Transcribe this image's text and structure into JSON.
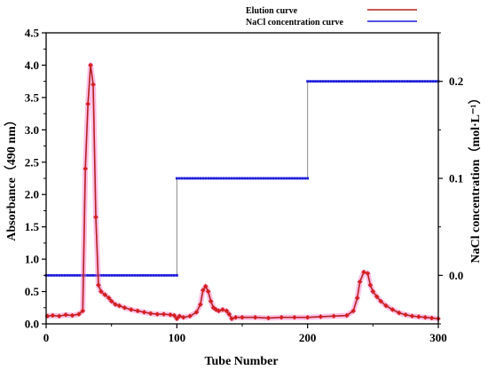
{
  "chart_data": {
    "type": "line",
    "xlabel": "Tube Number",
    "ylabel_left": "Absorbance（490 nm）",
    "ylabel_right": "NaCl concentration（mol·L⁻¹）",
    "xlim": [
      0,
      300
    ],
    "ylim_left": [
      0,
      4.5
    ],
    "ylim_right": [
      -0.05,
      0.25
    ],
    "x_ticks": [
      "0",
      "100",
      "200",
      "300"
    ],
    "y_left_ticks": [
      "0.0",
      "0.5",
      "1.0",
      "1.5",
      "2.0",
      "2.5",
      "3.0",
      "3.5",
      "4.0",
      "4.5"
    ],
    "y_right_ticks": [
      "0.0",
      "0.1",
      "0.2"
    ],
    "legend_position": "top-right",
    "series": [
      {
        "name": "Elution curve",
        "axis": "left",
        "color": "#b22222",
        "marker_color": "#d42020",
        "x": [
          1,
          5,
          10,
          15,
          20,
          25,
          28,
          30,
          32,
          34,
          36,
          38,
          40,
          42,
          45,
          48,
          50,
          53,
          56,
          60,
          65,
          70,
          75,
          80,
          85,
          90,
          95,
          98,
          100,
          102,
          105,
          110,
          115,
          118,
          120,
          122,
          124,
          126,
          128,
          130,
          132,
          135,
          138,
          140,
          142,
          145,
          150,
          160,
          170,
          180,
          190,
          200,
          210,
          220,
          230,
          235,
          238,
          240,
          243,
          246,
          248,
          250,
          253,
          256,
          260,
          265,
          270,
          275,
          280,
          285,
          290,
          295,
          300
        ],
        "y": [
          0.12,
          0.13,
          0.12,
          0.14,
          0.13,
          0.15,
          0.2,
          2.4,
          3.4,
          4.0,
          3.7,
          1.65,
          0.6,
          0.5,
          0.45,
          0.4,
          0.35,
          0.3,
          0.28,
          0.25,
          0.22,
          0.2,
          0.18,
          0.16,
          0.15,
          0.15,
          0.14,
          0.13,
          0.08,
          0.12,
          0.1,
          0.12,
          0.18,
          0.3,
          0.52,
          0.58,
          0.5,
          0.35,
          0.25,
          0.22,
          0.2,
          0.22,
          0.2,
          0.15,
          0.08,
          0.1,
          0.1,
          0.1,
          0.09,
          0.1,
          0.1,
          0.1,
          0.11,
          0.12,
          0.13,
          0.2,
          0.4,
          0.65,
          0.8,
          0.78,
          0.6,
          0.5,
          0.42,
          0.35,
          0.28,
          0.22,
          0.17,
          0.14,
          0.12,
          0.11,
          0.1,
          0.09,
          0.08
        ]
      },
      {
        "name": "NaCl concentration curve",
        "axis": "right",
        "color": "#1a1adb",
        "step_line_color": "#888888",
        "x": [
          0,
          100,
          100,
          200,
          200,
          300
        ],
        "y": [
          0.0,
          0.0,
          0.1,
          0.1,
          0.2,
          0.2
        ]
      }
    ]
  }
}
